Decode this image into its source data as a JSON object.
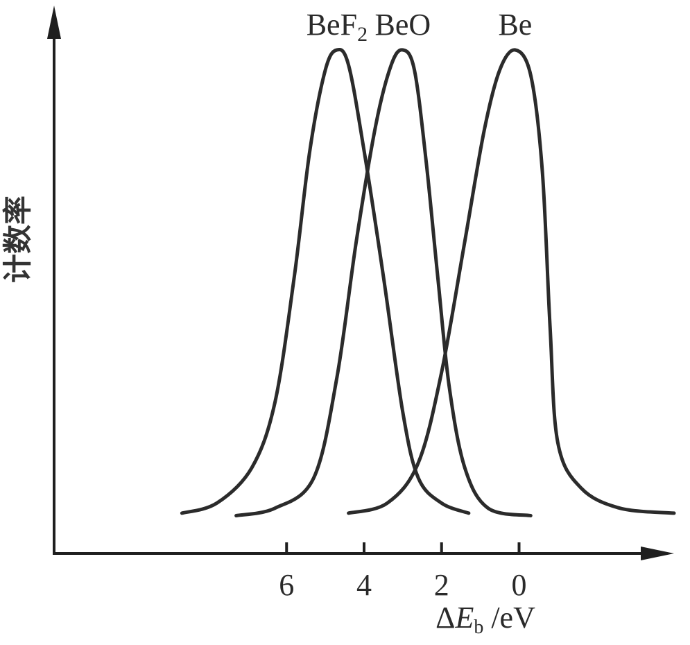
{
  "chart_data": {
    "type": "line",
    "title": "",
    "xlabel": {
      "prefix": "Δ",
      "symbol": "E",
      "subscript": "b",
      "unit": " /eV"
    },
    "ylabel": "计数率",
    "x_reversed": true,
    "xlim": [
      12,
      -4
    ],
    "ylim": [
      0,
      1
    ],
    "x_ticks": [
      6,
      4,
      2,
      0
    ],
    "y_ticks": [],
    "grid": false,
    "legend": "none",
    "line_color": "#2b2b2b",
    "series": [
      {
        "name": "BeF",
        "name_subscript": "2",
        "points": [
          [
            8.7,
            0.08
          ],
          [
            7.8,
            0.1
          ],
          [
            6.9,
            0.17
          ],
          [
            6.3,
            0.3
          ],
          [
            5.8,
            0.55
          ],
          [
            5.4,
            0.8
          ],
          [
            5.0,
            0.96
          ],
          [
            4.7,
            1.0
          ],
          [
            4.4,
            0.97
          ],
          [
            4.0,
            0.8
          ],
          [
            3.5,
            0.55
          ],
          [
            3.0,
            0.28
          ],
          [
            2.6,
            0.15
          ],
          [
            2.0,
            0.1
          ],
          [
            1.3,
            0.08
          ]
        ]
      },
      {
        "name": "BeO",
        "points": [
          [
            7.3,
            0.075
          ],
          [
            6.3,
            0.09
          ],
          [
            5.3,
            0.15
          ],
          [
            4.7,
            0.35
          ],
          [
            4.2,
            0.62
          ],
          [
            3.7,
            0.85
          ],
          [
            3.3,
            0.97
          ],
          [
            3.0,
            1.0
          ],
          [
            2.7,
            0.96
          ],
          [
            2.4,
            0.78
          ],
          [
            2.1,
            0.55
          ],
          [
            1.8,
            0.33
          ],
          [
            1.4,
            0.17
          ],
          [
            0.8,
            0.09
          ],
          [
            -0.3,
            0.075
          ]
        ]
      },
      {
        "name": "Be",
        "points": [
          [
            4.4,
            0.08
          ],
          [
            3.4,
            0.1
          ],
          [
            2.6,
            0.18
          ],
          [
            2.0,
            0.36
          ],
          [
            1.4,
            0.62
          ],
          [
            0.9,
            0.84
          ],
          [
            0.5,
            0.96
          ],
          [
            0.1,
            1.0
          ],
          [
            -0.3,
            0.95
          ],
          [
            -0.6,
            0.76
          ],
          [
            -0.8,
            0.45
          ],
          [
            -1.0,
            0.22
          ],
          [
            -1.6,
            0.13
          ],
          [
            -2.6,
            0.09
          ],
          [
            -4.0,
            0.08
          ]
        ]
      }
    ]
  }
}
